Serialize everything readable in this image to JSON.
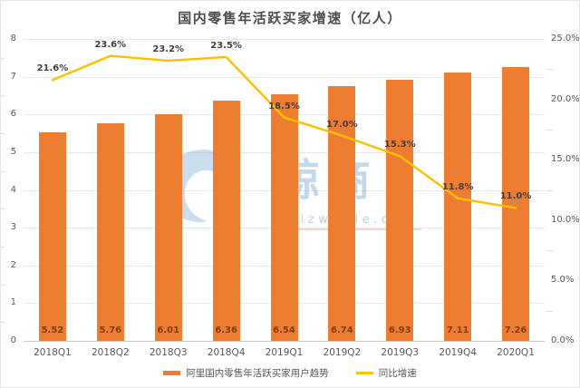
{
  "title": "国内零售年活跃买家增速（亿人）",
  "legend": {
    "bar_label": "阿里国内零售年活跃买家用户趋势",
    "line_label": "同比增速"
  },
  "watermark": {
    "logo": "whale-swirl-logo",
    "brand": "鲸商",
    "url": "bizwhale.cn"
  },
  "colors": {
    "bar": "#ED7D31",
    "line": "#FFC000",
    "bar_label": "#843C0C",
    "line_label": "#404040",
    "axis_text": "#595959",
    "grid": "#E8E8E8",
    "axis_line": "#C9C9C9",
    "minor_tick": "#DCDCDC",
    "background": "#FFFFFF",
    "border": "#E6E6E6",
    "watermark_blue": "#80AAD5"
  },
  "chart_data": {
    "type": "bar+line combo",
    "title": "国内零售年活跃买家增速（亿人）",
    "categories": [
      "2018Q1",
      "2018Q2",
      "2018Q3",
      "2018Q4",
      "2019Q1",
      "2019Q2",
      "2019Q3",
      "2019Q4",
      "2020Q1"
    ],
    "series": [
      {
        "name": "阿里国内零售年活跃买家用户趋势",
        "type": "bar",
        "axis": "left",
        "color": "#ED7D31",
        "values": [
          5.52,
          5.76,
          6.01,
          6.36,
          6.54,
          6.74,
          6.93,
          7.11,
          7.26
        ],
        "data_labels": [
          "5.52",
          "5.76",
          "6.01",
          "6.36",
          "6.54",
          "6.74",
          "6.93",
          "7.11",
          "7.26"
        ]
      },
      {
        "name": "同比增速",
        "type": "line",
        "axis": "right",
        "color": "#FFC000",
        "values": [
          21.6,
          23.6,
          23.2,
          23.5,
          18.5,
          17.0,
          15.3,
          11.8,
          11.0
        ],
        "data_labels": [
          "21.6%",
          "23.6%",
          "23.2%",
          "23.5%",
          "18.5%",
          "17.0%",
          "15.3%",
          "11.8%",
          "11.0%"
        ]
      }
    ],
    "left_axis": {
      "min": 0,
      "max": 8,
      "step": 1,
      "tick_labels": [
        "0",
        "1",
        "2",
        "3",
        "4",
        "5",
        "6",
        "7",
        "8"
      ]
    },
    "right_axis": {
      "min": 0,
      "max": 25,
      "step": 5,
      "tick_labels": [
        "0.0%",
        "5.0%",
        "10.0%",
        "15.0%",
        "20.0%",
        "25.0%"
      ]
    },
    "grid": true,
    "legend_position": "bottom"
  }
}
